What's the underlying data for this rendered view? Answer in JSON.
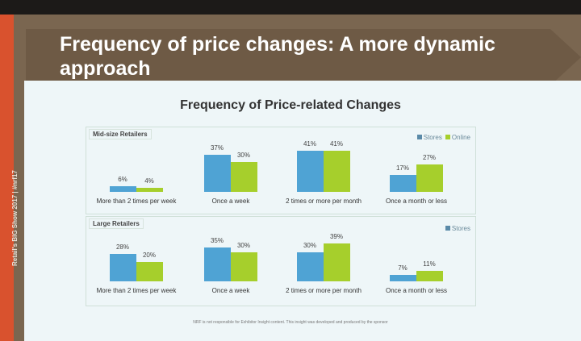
{
  "slide": {
    "title_line1": "Frequency of price changes: A more dynamic",
    "title_line2": "approach",
    "side_text": "Retail's BIG Show 2017 | #nrf17",
    "footer": "NRF is not responsible for Exhibitor Insight content. This insight was developed and produced by the sponsor"
  },
  "colors": {
    "stores": "#4fa3d4",
    "online": "#a6cf2c"
  },
  "chart_data": [
    {
      "type": "bar",
      "title": "Frequency of Price-related Changes",
      "panel": "Mid-size Retailers",
      "categories": [
        "More than 2 times per week",
        "Once a week",
        "2 times or more per month",
        "Once a month or less"
      ],
      "legend": [
        "Stores",
        "Online"
      ],
      "series": [
        {
          "name": "Stores",
          "values": [
            6,
            37,
            41,
            17
          ]
        },
        {
          "name": "Online",
          "values": [
            4,
            30,
            41,
            27
          ]
        }
      ],
      "ylabel": "",
      "xlabel": "",
      "unit": "%"
    },
    {
      "type": "bar",
      "panel": "Large Retailers",
      "categories": [
        "More than 2 times per week",
        "Once a week",
        "2 times or more per month",
        "Once a month or less"
      ],
      "legend": [
        "Stores"
      ],
      "series": [
        {
          "name": "Stores",
          "values": [
            28,
            35,
            30,
            7
          ]
        },
        {
          "name": "Online",
          "values": [
            20,
            30,
            39,
            11
          ]
        }
      ],
      "ylabel": "",
      "xlabel": "",
      "unit": "%"
    }
  ]
}
